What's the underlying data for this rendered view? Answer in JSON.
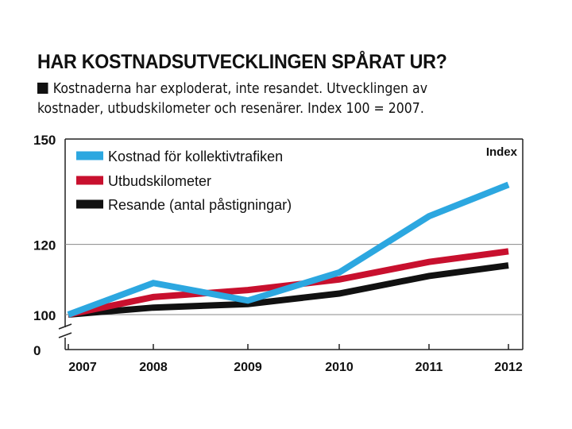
{
  "header": {
    "title": "HAR KOSTNADSUTVECKLINGEN SPÅRAT UR?",
    "subtitle": "Kostnaderna har exploderat, inte resandet. Utvecklingen av kostnader, utbudskilometer och resenärer. Index 100 = 2007."
  },
  "chart_data": {
    "type": "line",
    "title": "HAR KOSTNADSUTVECKLINGEN SPÅRAT UR?",
    "subtitle": "Kostnaderna har exploderat, inte resandet. Utvecklingen av kostnader, utbudskilometer och resenärer. Index 100 = 2007.",
    "ylabel": "Index",
    "xlabel": "",
    "categories": [
      "2007",
      "2008",
      "2009",
      "2010",
      "2011",
      "2012"
    ],
    "y_ticks": [
      0,
      100,
      120,
      150
    ],
    "ylim": [
      0,
      150
    ],
    "axis_break": true,
    "legend_position": "top-left",
    "series": [
      {
        "name": "Kostnad för kollektivtrafiken",
        "color": "#2ca7e0",
        "values": [
          100,
          109,
          104,
          112,
          128,
          137
        ]
      },
      {
        "name": "Utbudskilometer",
        "color": "#c8102e",
        "values": [
          100,
          105,
          107,
          110,
          115,
          118
        ]
      },
      {
        "name": "Resande (antal påstigningar)",
        "color": "#111111",
        "values": [
          100,
          102,
          103,
          106,
          111,
          114
        ]
      }
    ]
  }
}
